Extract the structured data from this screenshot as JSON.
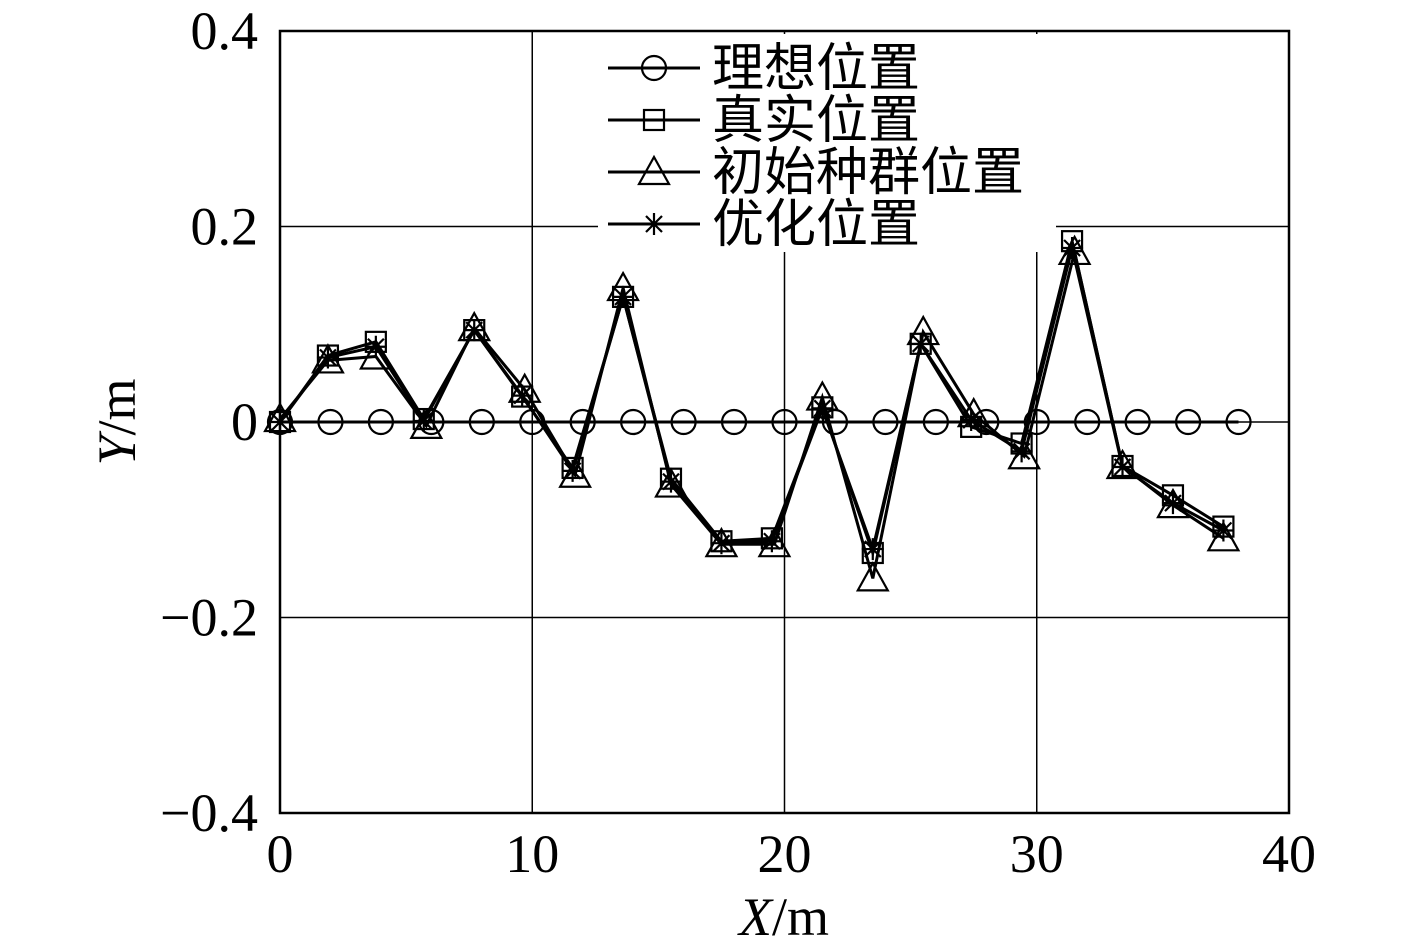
{
  "chart_data": {
    "type": "line",
    "xlabel": "X/m",
    "ylabel": "Y/m",
    "xlim": [
      0,
      40
    ],
    "ylim": [
      -0.4,
      0.4
    ],
    "xticks": [
      "0",
      "10",
      "20",
      "30",
      "40"
    ],
    "yticks": [
      "0.4",
      "0.2",
      "0",
      "−0.2",
      "−0.4"
    ],
    "grid": true,
    "legend_position": "top-center",
    "series": [
      {
        "name": "理想位置",
        "marker": "circle",
        "x": [
          0,
          2,
          4,
          6,
          8,
          10,
          12,
          14,
          16,
          18,
          20,
          22,
          24,
          26,
          28,
          30,
          32,
          34,
          36,
          38
        ],
        "y": [
          0,
          0,
          0,
          0,
          0,
          0,
          0,
          0,
          0,
          0,
          0,
          0,
          0,
          0,
          0,
          0,
          0,
          0,
          0,
          0
        ]
      },
      {
        "name": "真实位置",
        "marker": "square",
        "x": [
          0,
          1.9,
          3.8,
          5.7,
          7.7,
          9.6,
          11.6,
          13.6,
          15.5,
          17.5,
          19.5,
          21.5,
          23.5,
          25.4,
          27.4,
          29.4,
          31.4,
          33.4,
          35.4,
          37.4
        ],
        "y": [
          0,
          0.068,
          0.082,
          0.003,
          0.094,
          0.026,
          -0.047,
          0.128,
          -0.058,
          -0.122,
          -0.119,
          0.015,
          -0.134,
          0.08,
          -0.005,
          -0.022,
          0.185,
          -0.045,
          -0.075,
          -0.107
        ]
      },
      {
        "name": "初始种群位置",
        "marker": "triangle",
        "x": [
          0,
          1.9,
          3.8,
          5.8,
          7.7,
          9.7,
          11.7,
          13.6,
          15.5,
          17.5,
          19.6,
          21.5,
          23.5,
          25.5,
          27.5,
          29.5,
          31.5,
          33.4,
          35.4,
          37.4
        ],
        "y": [
          0.003,
          0.063,
          0.067,
          -0.004,
          0.096,
          0.033,
          -0.054,
          0.137,
          -0.064,
          -0.125,
          -0.125,
          0.025,
          -0.16,
          0.092,
          0.008,
          -0.035,
          0.174,
          -0.045,
          -0.085,
          -0.119
        ]
      },
      {
        "name": "优化位置",
        "marker": "asterisk",
        "x": [
          0,
          1.9,
          3.8,
          5.7,
          7.7,
          9.6,
          11.6,
          13.6,
          15.5,
          17.5,
          19.5,
          21.5,
          23.5,
          25.4,
          27.4,
          29.4,
          31.4,
          33.4,
          35.4,
          37.4
        ],
        "y": [
          0,
          0.066,
          0.077,
          0.001,
          0.094,
          0.027,
          -0.05,
          0.128,
          -0.061,
          -0.124,
          -0.122,
          0.014,
          -0.13,
          0.08,
          0.002,
          -0.03,
          0.178,
          -0.046,
          -0.083,
          -0.111
        ]
      }
    ]
  }
}
